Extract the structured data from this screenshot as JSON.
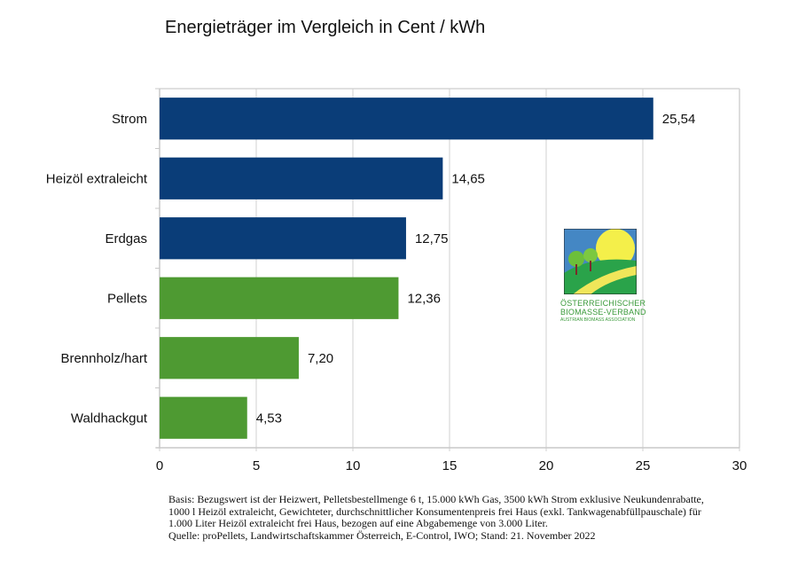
{
  "chart_data": {
    "type": "bar",
    "orientation": "horizontal",
    "title": "Energieträger im Vergleich in Cent / kWh",
    "xlabel": "",
    "ylabel": "",
    "xlim": [
      0,
      30
    ],
    "xticks": [
      0,
      5,
      10,
      15,
      20,
      25,
      30
    ],
    "xtick_labels": [
      "0",
      "5",
      "10",
      "15",
      "20",
      "25",
      "30"
    ],
    "grid": "vertical",
    "categories": [
      "Strom",
      "Heizöl extraleicht",
      "Erdgas",
      "Pellets",
      "Brennholz/hart",
      "Waldhackgut"
    ],
    "values": [
      25.54,
      14.65,
      12.75,
      12.36,
      7.2,
      4.53
    ],
    "value_labels": [
      "25,54",
      "14,65",
      "12,75",
      "12,36",
      "7,20",
      "4,53"
    ],
    "bar_colors": [
      "#0a3d78",
      "#0a3d78",
      "#0a3d78",
      "#4e9a32",
      "#4e9a32",
      "#4e9a32"
    ],
    "groups": {
      "fossil": "#0a3d78",
      "biomass": "#4e9a32"
    }
  },
  "logo": {
    "line1": "ÖSTERREICHISCHER",
    "line2": "BIOMASSE-VERBAND",
    "line3": "AUSTRIAN BIOMASS ASSOCIATION"
  },
  "footnote": {
    "lines": [
      "Basis: Bezugswert ist der Heizwert, Pelletsbestellmenge 6 t, 15.000 kWh Gas, 3500 kWh Strom exklusive Neukundenrabatte,",
      "1000 l Heizöl extraleicht, Gewichteter, durchschnittlicher Konsumentenpreis frei Haus (exkl. Tankwagenabfüllpauschale) für",
      "1.000 Liter Heizöl extraleicht frei Haus, bezogen auf eine Abgabemenge von 3.000 Liter.",
      "Quelle: proPellets, Landwirtschaftskammer Österreich, E-Control, IWO; Stand: 21. November 2022"
    ]
  }
}
